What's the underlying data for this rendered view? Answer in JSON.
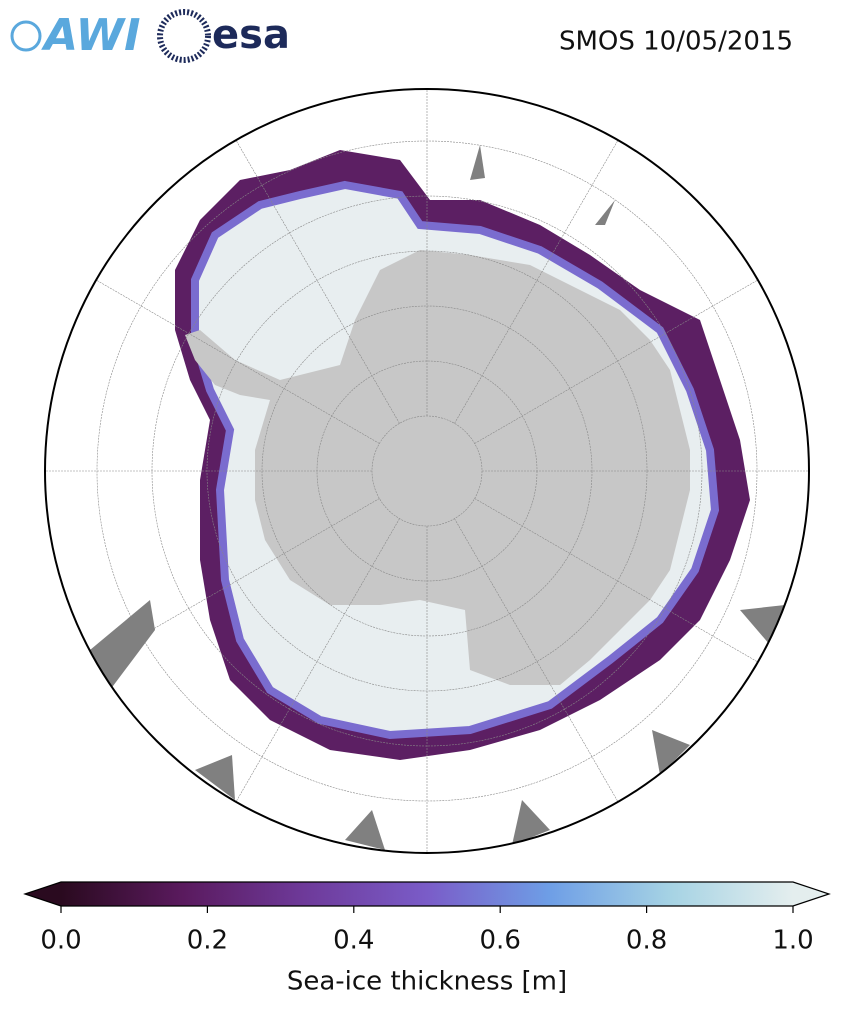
{
  "header": {
    "logo_left": "AWI",
    "logo_right": "esa",
    "title": "SMOS 10/05/2015"
  },
  "colorbar": {
    "label": "Sea-ice thickness [m]",
    "lim": [
      0,
      1
    ],
    "ticks": [
      {
        "value": 0,
        "label": "0.0"
      },
      {
        "value": 0.2,
        "label": "0.2"
      },
      {
        "value": 0.4,
        "label": "0.4"
      },
      {
        "value": 0.6,
        "label": "0.6"
      },
      {
        "value": 0.8,
        "label": "0.8"
      },
      {
        "value": 1,
        "label": "1.0"
      }
    ],
    "colors": [
      "#2a0a1f",
      "#5a1a5e",
      "#6e3a9a",
      "#7a5cc8",
      "#6e9ee6",
      "#a6d3e4",
      "#e4eeee"
    ]
  }
}
